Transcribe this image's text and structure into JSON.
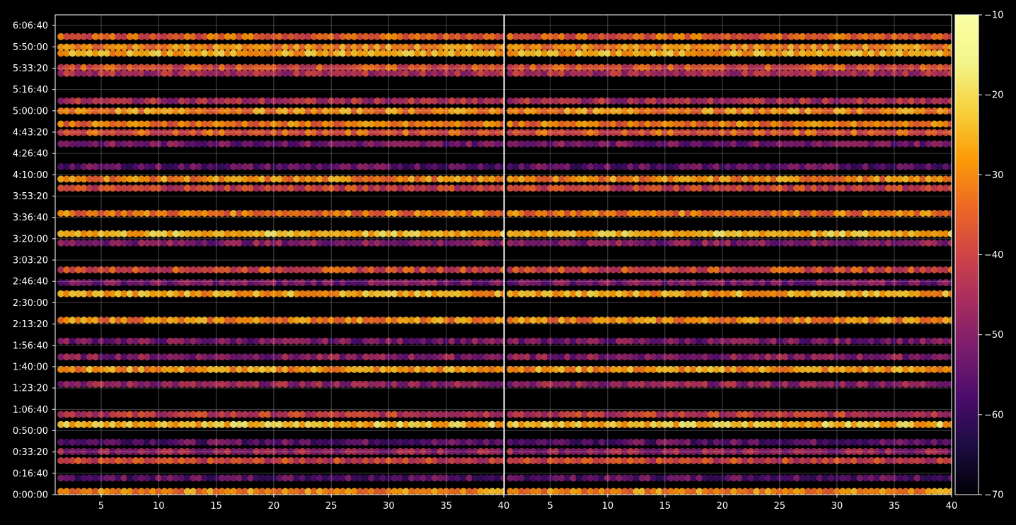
{
  "chart_data": {
    "type": "heatmap",
    "title": "",
    "xlabel": "",
    "ylabel": "",
    "panels": [
      {
        "name": "",
        "xlim": [
          1,
          40
        ],
        "x_ticks": [
          5,
          10,
          15,
          20,
          25,
          30,
          35,
          40
        ]
      },
      {
        "name": "",
        "xlim": [
          1,
          40
        ],
        "x_ticks": [
          5,
          10,
          15,
          20,
          25,
          30,
          35,
          40
        ]
      }
    ],
    "y_ticks": [
      "0:00:00",
      "0:16:40",
      "0:33:20",
      "0:50:00",
      "1:06:40",
      "1:23:20",
      "1:40:00",
      "1:56:40",
      "2:13:20",
      "2:30:00",
      "2:46:40",
      "3:03:20",
      "3:20:00",
      "3:36:40",
      "3:53:20",
      "4:10:00",
      "4:26:40",
      "4:43:20",
      "5:00:00",
      "5:16:40",
      "5:33:20",
      "5:50:00",
      "6:06:40"
    ],
    "y_tick_seconds": [
      0,
      1000,
      2000,
      3000,
      4000,
      5000,
      6000,
      7000,
      8000,
      9000,
      10000,
      11000,
      12000,
      13000,
      14000,
      15000,
      16000,
      17000,
      18000,
      19000,
      20000,
      21000,
      22000
    ],
    "ylim_seconds": [
      0,
      22500
    ],
    "grid": true,
    "colorbar": {
      "range": [
        -70,
        -10
      ],
      "ticks": [
        "−70",
        "−60",
        "−50",
        "−40",
        "−30",
        "−20",
        "−10"
      ],
      "colormap": "inferno"
    },
    "bands": [
      {
        "t": 150,
        "level": -30
      },
      {
        "t": 780,
        "level": -55
      },
      {
        "t": 1590,
        "level": -40
      },
      {
        "t": 2020,
        "level": -48
      },
      {
        "t": 2460,
        "level": -55
      },
      {
        "t": 3290,
        "level": -23
      },
      {
        "t": 3760,
        "level": -42
      },
      {
        "t": 5180,
        "level": -48
      },
      {
        "t": 5870,
        "level": -28
      },
      {
        "t": 6460,
        "level": -50
      },
      {
        "t": 7200,
        "level": -52
      },
      {
        "t": 8180,
        "level": -30
      },
      {
        "t": 9420,
        "level": -26
      },
      {
        "t": 9940,
        "level": -52
      },
      {
        "t": 10540,
        "level": -38
      },
      {
        "t": 11800,
        "level": -50
      },
      {
        "t": 12230,
        "level": -24
      },
      {
        "t": 13190,
        "level": -32
      },
      {
        "t": 14370,
        "level": -40
      },
      {
        "t": 14800,
        "level": -30
      },
      {
        "t": 15380,
        "level": -55
      },
      {
        "t": 16450,
        "level": -52
      },
      {
        "t": 16980,
        "level": -36
      },
      {
        "t": 17380,
        "level": -32
      },
      {
        "t": 17990,
        "level": -30
      },
      {
        "t": 18460,
        "level": -45
      },
      {
        "t": 19760,
        "level": -45
      },
      {
        "t": 20030,
        "level": -38
      },
      {
        "t": 20700,
        "level": -26
      },
      {
        "t": 20990,
        "level": -30
      },
      {
        "t": 21480,
        "level": -35
      }
    ]
  }
}
